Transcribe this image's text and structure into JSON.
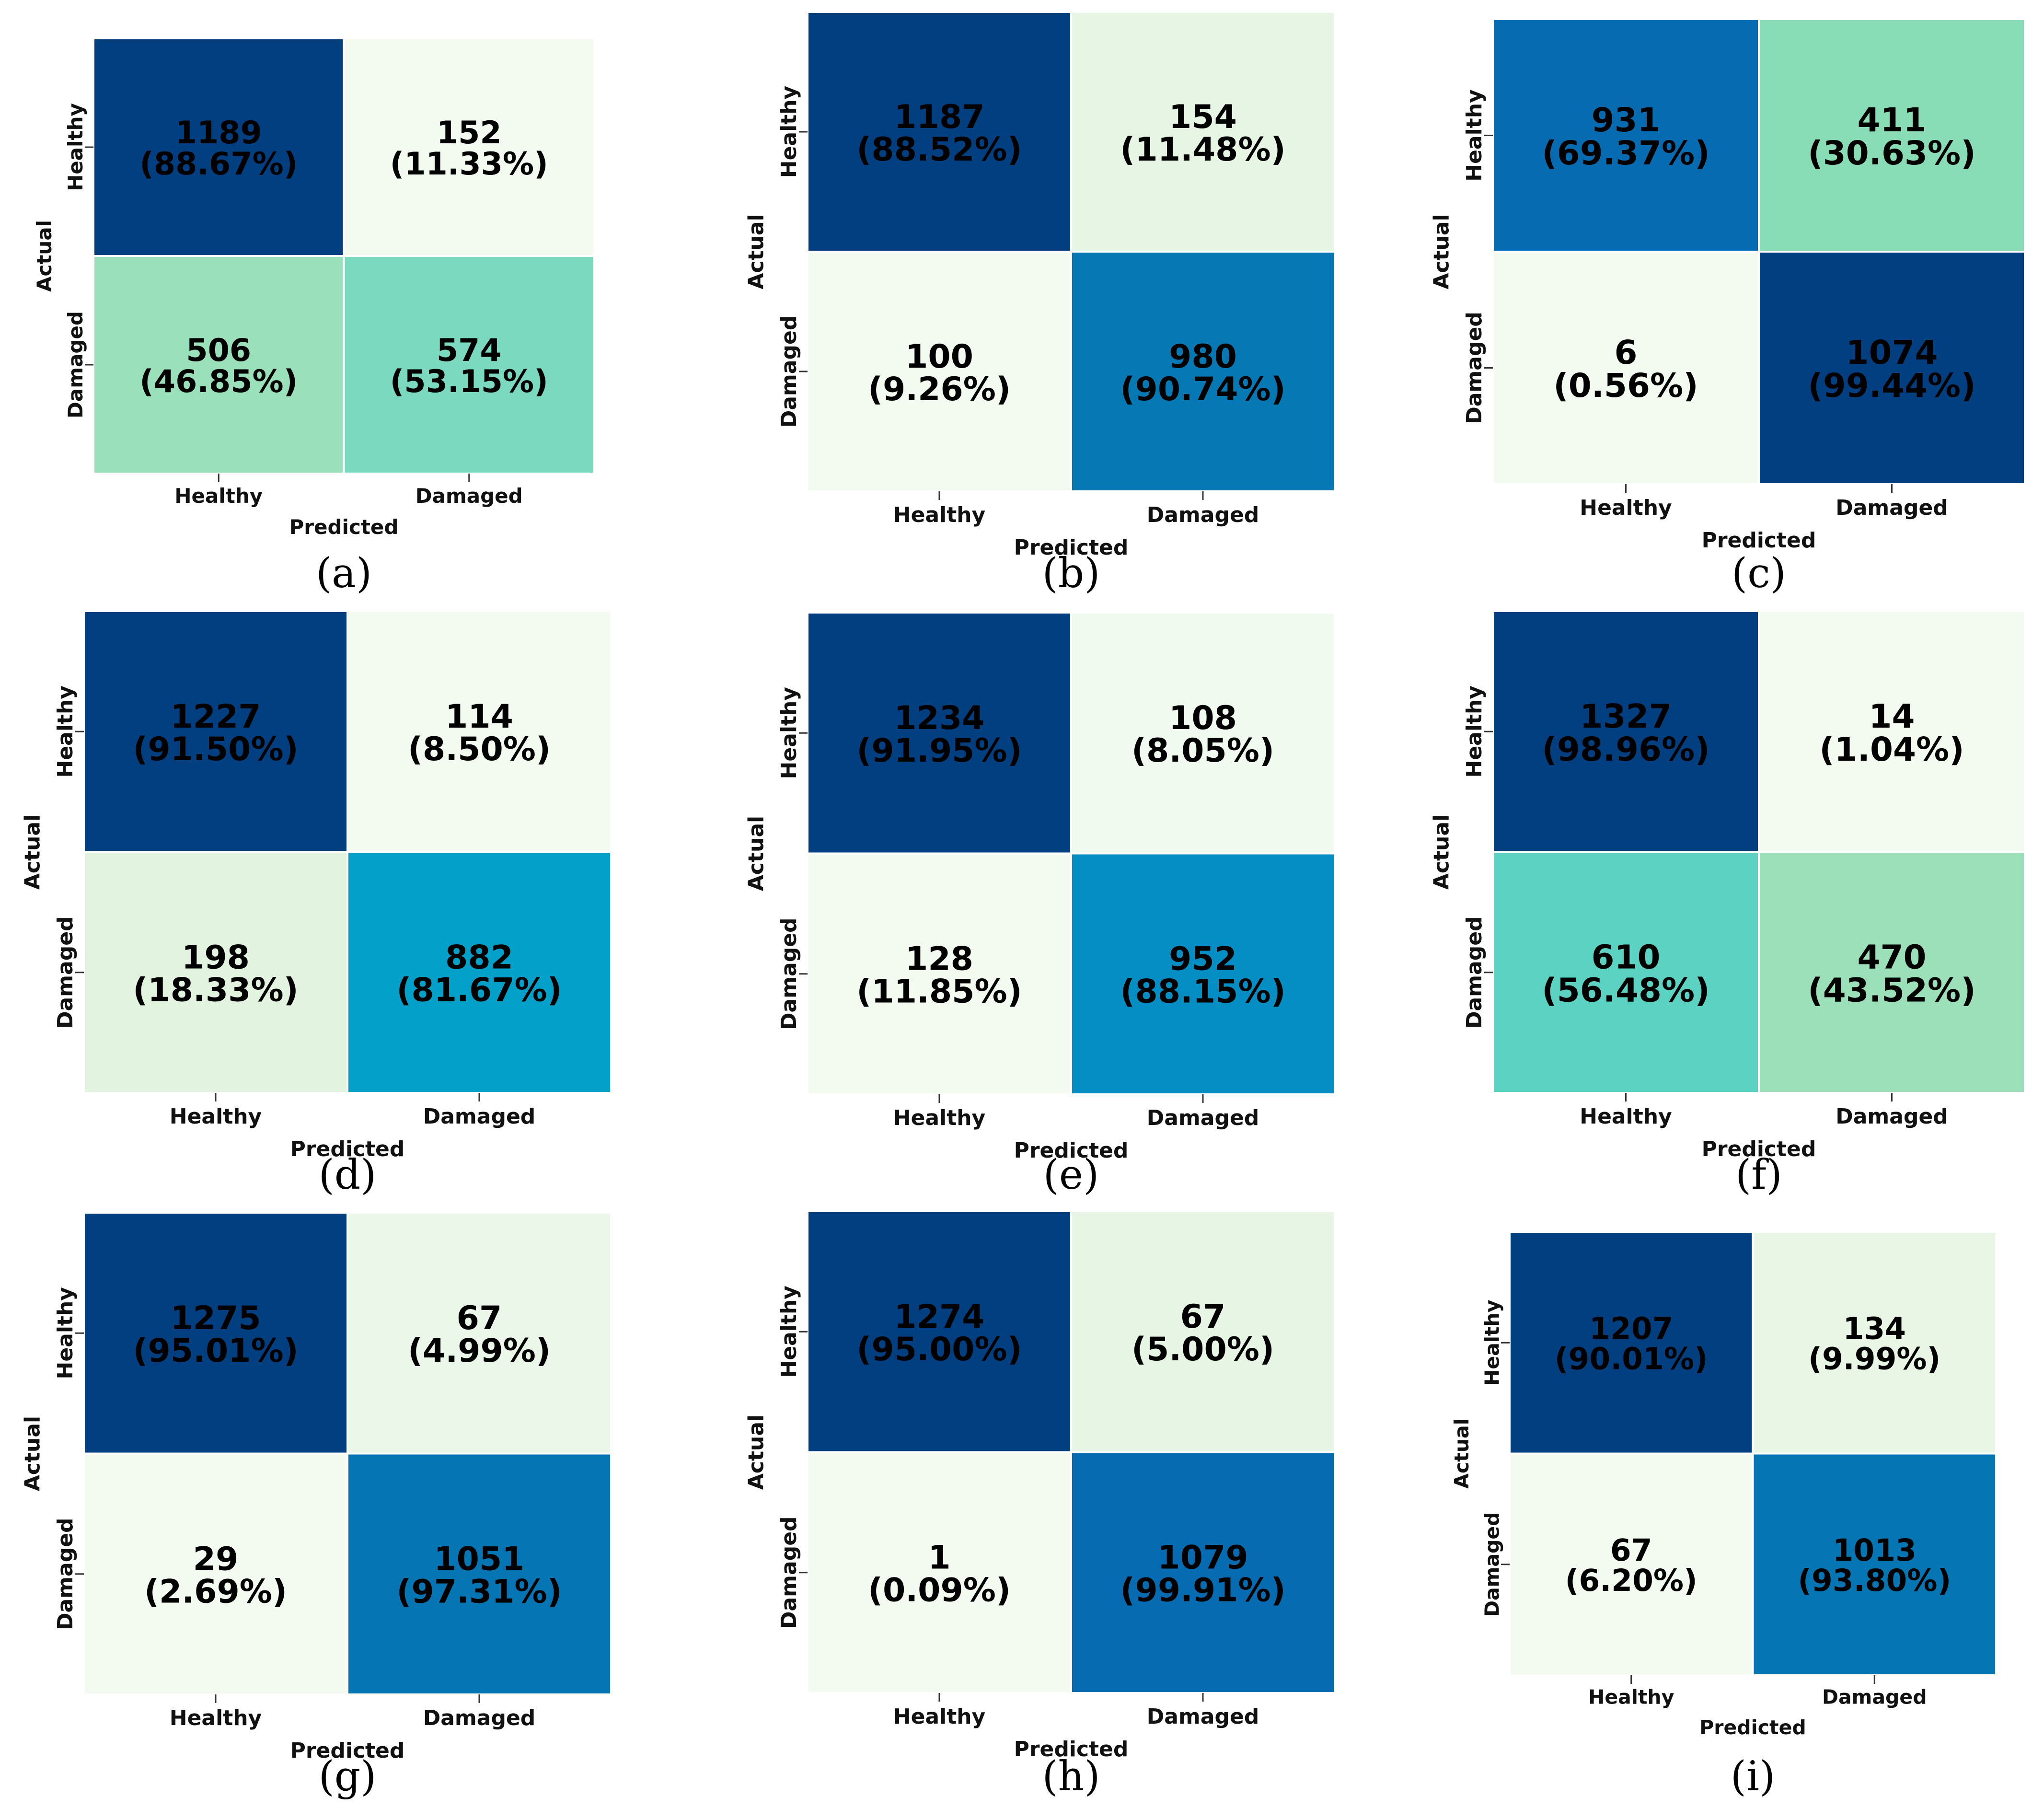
{
  "chart_data": [
    {
      "type": "heatmap",
      "panel_label": "(a)",
      "xlabel": "Predicted",
      "ylabel": "Actual",
      "x_categories": [
        "Healthy",
        "Damaged"
      ],
      "y_categories": [
        "Healthy",
        "Damaged"
      ],
      "cells": [
        [
          {
            "count": "1189",
            "pct": "(88.67%)",
            "color": "#023f80"
          },
          {
            "count": "152",
            "pct": "(11.33%)",
            "color": "#f3fbf0"
          }
        ],
        [
          {
            "count": "506",
            "pct": "(46.85%)",
            "color": "#9ae1bb"
          },
          {
            "count": "574",
            "pct": "(53.15%)",
            "color": "#7ad9bf"
          }
        ]
      ]
    },
    {
      "type": "heatmap",
      "panel_label": "(b)",
      "xlabel": "Predicted",
      "ylabel": "Actual",
      "x_categories": [
        "Healthy",
        "Damaged"
      ],
      "y_categories": [
        "Healthy",
        "Damaged"
      ],
      "cells": [
        [
          {
            "count": "1187",
            "pct": "(88.52%)",
            "color": "#023f80"
          },
          {
            "count": "154",
            "pct": "(11.48%)",
            "color": "#e7f6e4"
          }
        ],
        [
          {
            "count": "100",
            "pct": "(9.26%)",
            "color": "#f3fbf0"
          },
          {
            "count": "980",
            "pct": "(90.74%)",
            "color": "#0679b5"
          }
        ]
      ]
    },
    {
      "type": "heatmap",
      "panel_label": "(c)",
      "xlabel": "Predicted",
      "ylabel": "Actual",
      "x_categories": [
        "Healthy",
        "Damaged"
      ],
      "y_categories": [
        "Healthy",
        "Damaged"
      ],
      "cells": [
        [
          {
            "count": "931",
            "pct": "(69.37%)",
            "color": "#066bb0"
          },
          {
            "count": "411",
            "pct": "(30.63%)",
            "color": "#88ddb7"
          }
        ],
        [
          {
            "count": "6",
            "pct": "(0.56%)",
            "color": "#f3fbf0"
          },
          {
            "count": "1074",
            "pct": "(99.44%)",
            "color": "#023f80"
          }
        ]
      ]
    },
    {
      "type": "heatmap",
      "panel_label": "(d)",
      "xlabel": "Predicted",
      "ylabel": "Actual",
      "x_categories": [
        "Healthy",
        "Damaged"
      ],
      "y_categories": [
        "Healthy",
        "Damaged"
      ],
      "cells": [
        [
          {
            "count": "1227",
            "pct": "(91.50%)",
            "color": "#023f80"
          },
          {
            "count": "114",
            "pct": "(8.50%)",
            "color": "#f3fbf0"
          }
        ],
        [
          {
            "count": "198",
            "pct": "(18.33%)",
            "color": "#e2f4df"
          },
          {
            "count": "882",
            "pct": "(81.67%)",
            "color": "#03a1c9"
          }
        ]
      ]
    },
    {
      "type": "heatmap",
      "panel_label": "(e)",
      "xlabel": "Predicted",
      "ylabel": "Actual",
      "x_categories": [
        "Healthy",
        "Damaged"
      ],
      "y_categories": [
        "Healthy",
        "Damaged"
      ],
      "cells": [
        [
          {
            "count": "1234",
            "pct": "(91.95%)",
            "color": "#023f80"
          },
          {
            "count": "108",
            "pct": "(8.05%)",
            "color": "#f1faee"
          }
        ],
        [
          {
            "count": "128",
            "pct": "(11.85%)",
            "color": "#f3fbf0"
          },
          {
            "count": "952",
            "pct": "(88.15%)",
            "color": "#058ec3"
          }
        ]
      ]
    },
    {
      "type": "heatmap",
      "panel_label": "(f)",
      "xlabel": "Predicted",
      "ylabel": "Actual",
      "x_categories": [
        "Healthy",
        "Damaged"
      ],
      "y_categories": [
        "Healthy",
        "Damaged"
      ],
      "cells": [
        [
          {
            "count": "1327",
            "pct": "(98.96%)",
            "color": "#023f80"
          },
          {
            "count": "14",
            "pct": "(1.04%)",
            "color": "#f3fbf0"
          }
        ],
        [
          {
            "count": "610",
            "pct": "(56.48%)",
            "color": "#5cd3c2"
          },
          {
            "count": "470",
            "pct": "(43.52%)",
            "color": "#9be0b9"
          }
        ]
      ]
    },
    {
      "type": "heatmap",
      "panel_label": "(g)",
      "xlabel": "Predicted",
      "ylabel": "Actual",
      "x_categories": [
        "Healthy",
        "Damaged"
      ],
      "y_categories": [
        "Healthy",
        "Damaged"
      ],
      "cells": [
        [
          {
            "count": "1275",
            "pct": "(95.01%)",
            "color": "#023f80"
          },
          {
            "count": "67",
            "pct": "(4.99%)",
            "color": "#ebf7e8"
          }
        ],
        [
          {
            "count": "29",
            "pct": "(2.69%)",
            "color": "#f3fbf0"
          },
          {
            "count": "1051",
            "pct": "(97.31%)",
            "color": "#0675b4"
          }
        ]
      ]
    },
    {
      "type": "heatmap",
      "panel_label": "(h)",
      "xlabel": "Predicted",
      "ylabel": "Actual",
      "x_categories": [
        "Healthy",
        "Damaged"
      ],
      "y_categories": [
        "Healthy",
        "Damaged"
      ],
      "cells": [
        [
          {
            "count": "1274",
            "pct": "(95.00%)",
            "color": "#023f80"
          },
          {
            "count": "67",
            "pct": "(5.00%)",
            "color": "#e7f6e4"
          }
        ],
        [
          {
            "count": "1",
            "pct": "(0.09%)",
            "color": "#f3fbf0"
          },
          {
            "count": "1079",
            "pct": "(99.91%)",
            "color": "#066bb0"
          }
        ]
      ]
    },
    {
      "type": "heatmap",
      "panel_label": "(i)",
      "xlabel": "Predicted",
      "ylabel": "Actual",
      "x_categories": [
        "Healthy",
        "Damaged"
      ],
      "y_categories": [
        "Healthy",
        "Damaged"
      ],
      "cells": [
        [
          {
            "count": "1207",
            "pct": "(90.01%)",
            "color": "#023f80"
          },
          {
            "count": "134",
            "pct": "(9.99%)",
            "color": "#e9f6e6"
          }
        ],
        [
          {
            "count": "67",
            "pct": "(6.20%)",
            "color": "#f3fbf0"
          },
          {
            "count": "1013",
            "pct": "(93.80%)",
            "color": "#0675b4"
          }
        ]
      ]
    }
  ]
}
